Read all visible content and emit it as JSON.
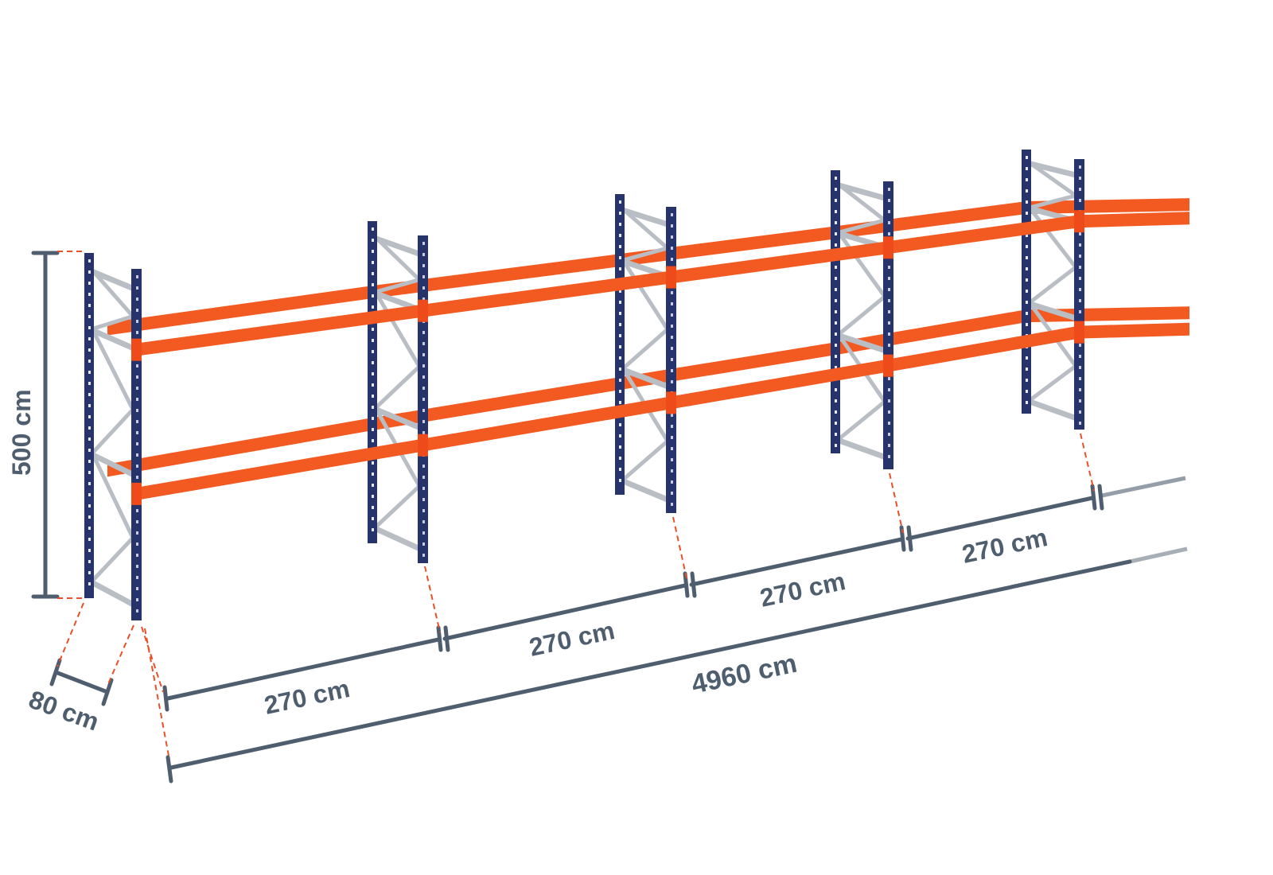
{
  "diagram": {
    "height_label": "500 cm",
    "depth_label": "80 cm",
    "bay_labels": [
      "270 cm",
      "270 cm",
      "270 cm",
      "270 cm"
    ],
    "total_length_label": "4960 cm"
  },
  "colors": {
    "upright": "#27336b",
    "beam": "#f25a22",
    "brace": "#b9bec4",
    "dimension_line": "#4f5e6e",
    "guide_dash": "#e8502a"
  }
}
